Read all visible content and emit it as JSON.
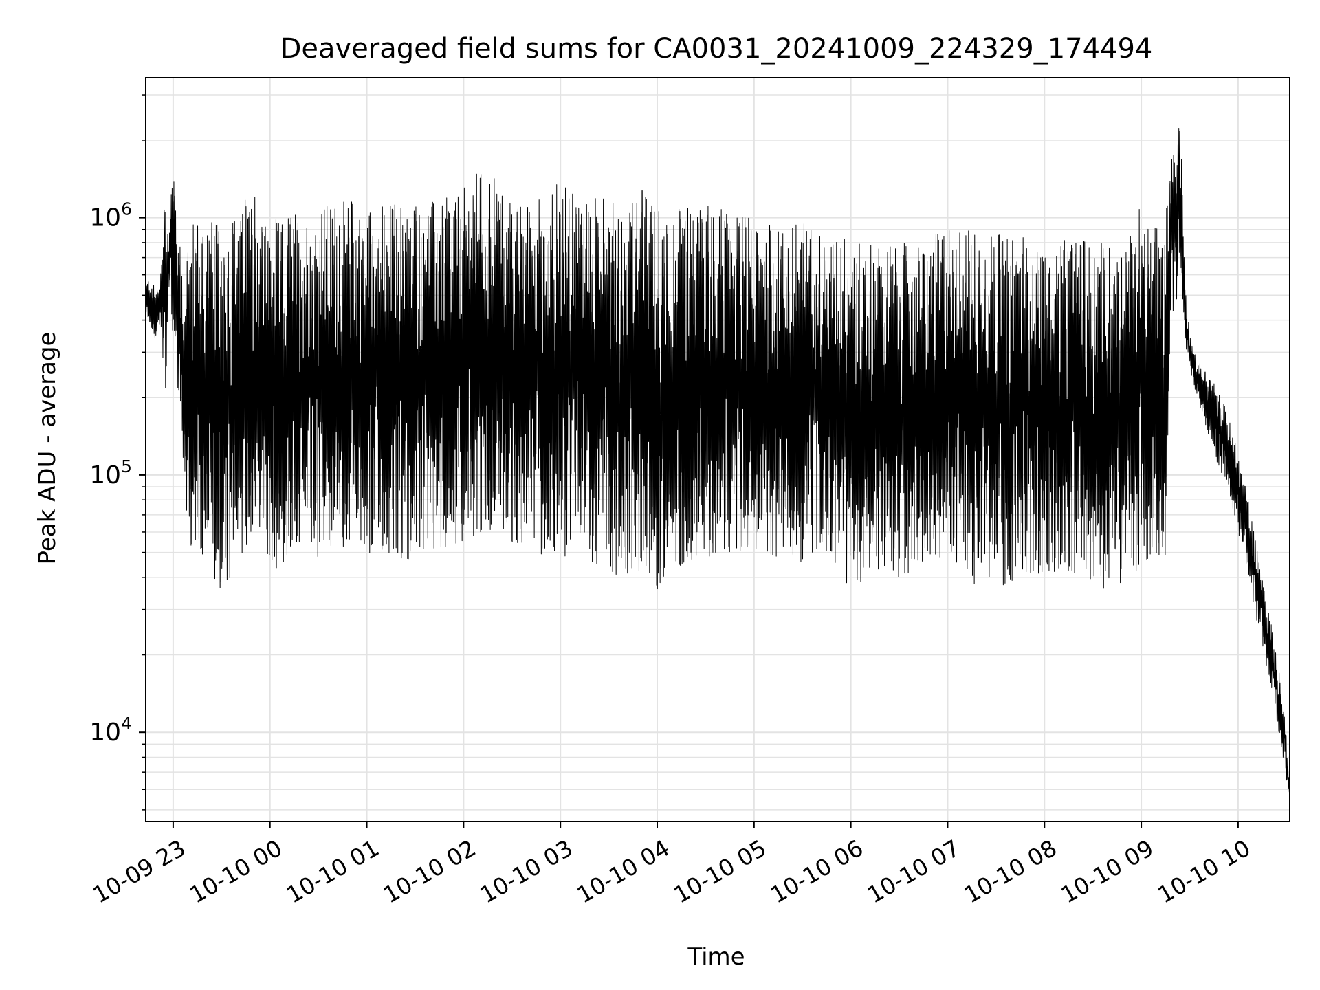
{
  "chart_data": {
    "type": "line",
    "title": "Deaveraged field sums for CA0031_20241009_224329_174494",
    "xlabel": "Time",
    "ylabel": "Peak ADU - average",
    "yscale": "log",
    "ylim": [
      4500,
      3500000
    ],
    "xlim": [
      "2024-10-09 22:43",
      "2024-10-10 10:32"
    ],
    "grid": true,
    "line_color": "#000000",
    "y_ticks": [
      {
        "value": 10000,
        "base": "10",
        "exp": "4"
      },
      {
        "value": 100000,
        "base": "10",
        "exp": "5"
      },
      {
        "value": 1000000,
        "base": "10",
        "exp": "6"
      }
    ],
    "x_ticks": [
      {
        "value": "2024-10-09 23:00",
        "label": "10-09 23"
      },
      {
        "value": "2024-10-10 00:00",
        "label": "10-10 00"
      },
      {
        "value": "2024-10-10 01:00",
        "label": "10-10 01"
      },
      {
        "value": "2024-10-10 02:00",
        "label": "10-10 02"
      },
      {
        "value": "2024-10-10 03:00",
        "label": "10-10 03"
      },
      {
        "value": "2024-10-10 04:00",
        "label": "10-10 04"
      },
      {
        "value": "2024-10-10 05:00",
        "label": "10-10 05"
      },
      {
        "value": "2024-10-10 06:00",
        "label": "10-10 06"
      },
      {
        "value": "2024-10-10 07:00",
        "label": "10-10 07"
      },
      {
        "value": "2024-10-10 08:00",
        "label": "10-10 08"
      },
      {
        "value": "2024-10-10 09:00",
        "label": "10-10 09"
      },
      {
        "value": "2024-10-10 10:00",
        "label": "10-10 10"
      }
    ],
    "series": [
      {
        "x": [
          "2024-10-09 22:43",
          "2024-10-09 22:46",
          "2024-10-09 22:49",
          "2024-10-09 22:52",
          "2024-10-09 22:55",
          "2024-10-09 22:57",
          "2024-10-09 23:00",
          "2024-10-09 23:02",
          "2024-10-09 23:04",
          "2024-10-09 23:06",
          "2024-10-09 23:08",
          "2024-10-09 23:12",
          "2024-10-09 23:15",
          "2024-10-09 23:18",
          "2024-10-09 23:22",
          "2024-10-09 23:27",
          "2024-10-09 23:32",
          "2024-10-09 23:37",
          "2024-10-09 23:42",
          "2024-10-09 23:47",
          "2024-10-09 23:52",
          "2024-10-09 23:55",
          "2024-10-09 23:58",
          "2024-10-10 00:03",
          "2024-10-10 00:08",
          "2024-10-10 00:13",
          "2024-10-10 00:18",
          "2024-10-10 00:23",
          "2024-10-10 00:30",
          "2024-10-10 00:40",
          "2024-10-10 00:50",
          "2024-10-10 01:00",
          "2024-10-10 01:15",
          "2024-10-10 01:30",
          "2024-10-10 01:45",
          "2024-10-10 02:00",
          "2024-10-10 02:10",
          "2024-10-10 02:20",
          "2024-10-10 02:25",
          "2024-10-10 02:30",
          "2024-10-10 02:40",
          "2024-10-10 02:50",
          "2024-10-10 03:00",
          "2024-10-10 03:10",
          "2024-10-10 03:20",
          "2024-10-10 03:30",
          "2024-10-10 03:40",
          "2024-10-10 03:50",
          "2024-10-10 04:00",
          "2024-10-10 04:15",
          "2024-10-10 04:30",
          "2024-10-10 04:45",
          "2024-10-10 05:00",
          "2024-10-10 05:15",
          "2024-10-10 05:30",
          "2024-10-10 05:45",
          "2024-10-10 06:00",
          "2024-10-10 06:15",
          "2024-10-10 06:30",
          "2024-10-10 06:45",
          "2024-10-10 07:00",
          "2024-10-10 07:15",
          "2024-10-10 07:30",
          "2024-10-10 07:45",
          "2024-10-10 08:00",
          "2024-10-10 08:15",
          "2024-10-10 08:30",
          "2024-10-10 08:45",
          "2024-10-10 08:50",
          "2024-10-10 08:55",
          "2024-10-10 09:00",
          "2024-10-10 09:05",
          "2024-10-10 09:10",
          "2024-10-10 09:13",
          "2024-10-10 09:15",
          "2024-10-10 09:18",
          "2024-10-10 09:21",
          "2024-10-10 09:24",
          "2024-10-10 09:27",
          "2024-10-10 09:30",
          "2024-10-10 09:35",
          "2024-10-10 09:40",
          "2024-10-10 09:45",
          "2024-10-10 09:50",
          "2024-10-10 09:55",
          "2024-10-10 10:00",
          "2024-10-10 10:05",
          "2024-10-10 10:10",
          "2024-10-10 10:15",
          "2024-10-10 10:20",
          "2024-10-10 10:25",
          "2024-10-10 10:29",
          "2024-10-10 10:32"
        ],
        "y_high": [
          550000,
          600000,
          520000,
          580000,
          1300000,
          900000,
          1800000,
          1100000,
          800000,
          600000,
          850000,
          950000,
          1000000,
          1050000,
          1000000,
          950000,
          1000000,
          1050000,
          1000000,
          1350000,
          1150000,
          1050000,
          1000000,
          1000000,
          950000,
          1100000,
          1050000,
          1000000,
          1100000,
          1150000,
          1200000,
          1100000,
          1150000,
          1200000,
          1150000,
          1300000,
          1600000,
          1400000,
          1250000,
          1100000,
          1150000,
          1300000,
          1400000,
          1200000,
          1250000,
          1150000,
          1100000,
          1300000,
          1100000,
          1100000,
          1150000,
          1100000,
          1000000,
          900000,
          950000,
          900000,
          850000,
          800000,
          800000,
          780000,
          950000,
          900000,
          850000,
          900000,
          800000,
          820000,
          800000,
          780000,
          750000,
          950000,
          1300000,
          1000000,
          950000,
          900000,
          1000000,
          1500000,
          2300000,
          2800000,
          600000,
          350000,
          280000,
          250000,
          230000,
          200000,
          160000,
          120000,
          90000,
          60000,
          40000,
          28000,
          18000,
          12000,
          6000
        ],
        "y_low": [
          420000,
          380000,
          330000,
          400000,
          170000,
          500000,
          350000,
          250000,
          180000,
          120000,
          60000,
          48000,
          45000,
          42000,
          45000,
          38000,
          34000,
          33000,
          45000,
          55000,
          70000,
          50000,
          45000,
          44000,
          42000,
          50000,
          55000,
          52000,
          48000,
          50000,
          55000,
          50000,
          48000,
          47000,
          52000,
          55000,
          60000,
          62000,
          60000,
          55000,
          50000,
          48000,
          47000,
          50000,
          45000,
          42000,
          40000,
          38000,
          36000,
          45000,
          47000,
          50000,
          52000,
          48000,
          45000,
          50000,
          36000,
          42000,
          40000,
          45000,
          48000,
          38000,
          36000,
          40000,
          42000,
          38000,
          35000,
          33000,
          36000,
          40000,
          45000,
          48000,
          44000,
          47000,
          45000,
          400000,
          420000,
          600000,
          300000,
          250000,
          200000,
          150000,
          120000,
          100000,
          80000,
          60000,
          45000,
          30000,
          22000,
          15000,
          10000,
          7000,
          5600
        ]
      }
    ]
  }
}
